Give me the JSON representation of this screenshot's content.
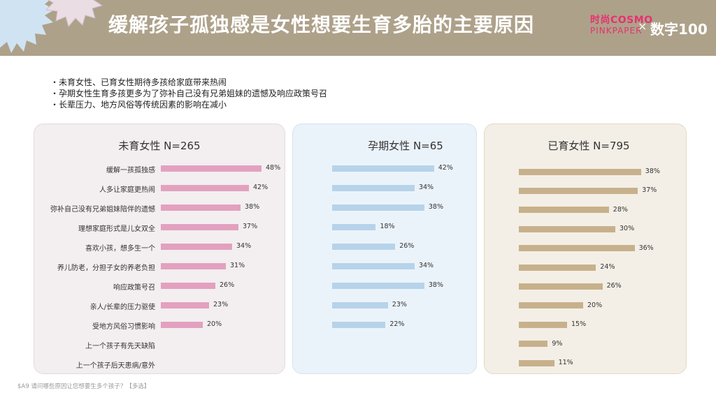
{
  "header": {
    "title": "缓解孩子孤独感是女性想要生育多胎的主要原因",
    "brand_cosmo": "时尚COSMO",
    "brand_pinkpaper": "PINKPAPER",
    "cross": "×",
    "brand_shuzi": "数字100"
  },
  "bullets": [
    "・未育女性、已育女性期待多孩给家庭带来热闹",
    "・孕期女性生育多孩更多为了弥补自己没有兄弟姐妹的遗憾及响应政策号召",
    "・长辈压力、地方风俗等传统因素的影响在减小"
  ],
  "footnote": "$A9 请问哪些原因让您想要生多个孩子？【多选】",
  "colors": {
    "header_bg": "#aea18a",
    "panel1_bg": "#f3eef0",
    "panel1_border": "#e3dbdf",
    "bar1": "#e3a1bf",
    "panel2_bg": "#ebf3fa",
    "panel2_border": "#d5e3ee",
    "bar2": "#b6d3ea",
    "panel3_bg": "#f3efe6",
    "panel3_border": "#e2d9c8",
    "bar3": "#c7b18c"
  },
  "chart_data": [
    {
      "type": "bar",
      "orientation": "horizontal",
      "title": "未育女性 N=265",
      "categories": [
        "缓解一孩孤独感",
        "人多让家庭更热闹",
        "弥补自己没有兄弟姐妹陪伴的遗憾",
        "理想家庭形式是儿女双全",
        "喜欢小孩，想多生一个",
        "养儿防老，分担子女的养老负担",
        "响应政策号召",
        "亲人/长辈的压力驱使",
        "受地方风俗习惯影响",
        "上一个孩子有先天缺陷",
        "上一个孩子后天患病/意外"
      ],
      "values": [
        48,
        42,
        38,
        37,
        34,
        31,
        26,
        23,
        20,
        null,
        null
      ],
      "labels": [
        "48%",
        "42%",
        "38%",
        "37%",
        "34%",
        "31%",
        "26%",
        "23%",
        "20%",
        "",
        ""
      ],
      "unit": "%"
    },
    {
      "type": "bar",
      "orientation": "horizontal",
      "title": "孕期女性 N=65",
      "categories": [
        "缓解一孩孤独感",
        "人多让家庭更热闹",
        "弥补自己没有兄弟姐妹陪伴的遗憾",
        "理想家庭形式是儿女双全",
        "喜欢小孩，想多生一个",
        "养儿防老，分担子女的养老负担",
        "响应政策号召",
        "亲人/长辈的压力驱使",
        "受地方风俗习惯影响"
      ],
      "values": [
        42,
        34,
        38,
        18,
        26,
        34,
        38,
        23,
        22
      ],
      "labels": [
        "42%",
        "34%",
        "38%",
        "18%",
        "26%",
        "34%",
        "38%",
        "23%",
        "22%"
      ],
      "unit": "%"
    },
    {
      "type": "bar",
      "orientation": "horizontal",
      "title": "已育女性 N=795",
      "categories": [
        "缓解一孩孤独感",
        "人多让家庭更热闹",
        "弥补自己没有兄弟姐妹陪伴的遗憾",
        "理想家庭形式是儿女双全",
        "喜欢小孩，想多生一个",
        "养儿防老，分担子女的养老负担",
        "响应政策号召",
        "亲人/长辈的压力驱使",
        "受地方风俗习惯影响",
        "上一个孩子有先天缺陷",
        "上一个孩子后天患病/意外"
      ],
      "values": [
        38,
        37,
        28,
        30,
        36,
        24,
        26,
        20,
        15,
        9,
        11
      ],
      "labels": [
        "38%",
        "37%",
        "28%",
        "30%",
        "36%",
        "24%",
        "26%",
        "20%",
        "15%",
        "9%",
        "11%"
      ],
      "unit": "%"
    }
  ]
}
